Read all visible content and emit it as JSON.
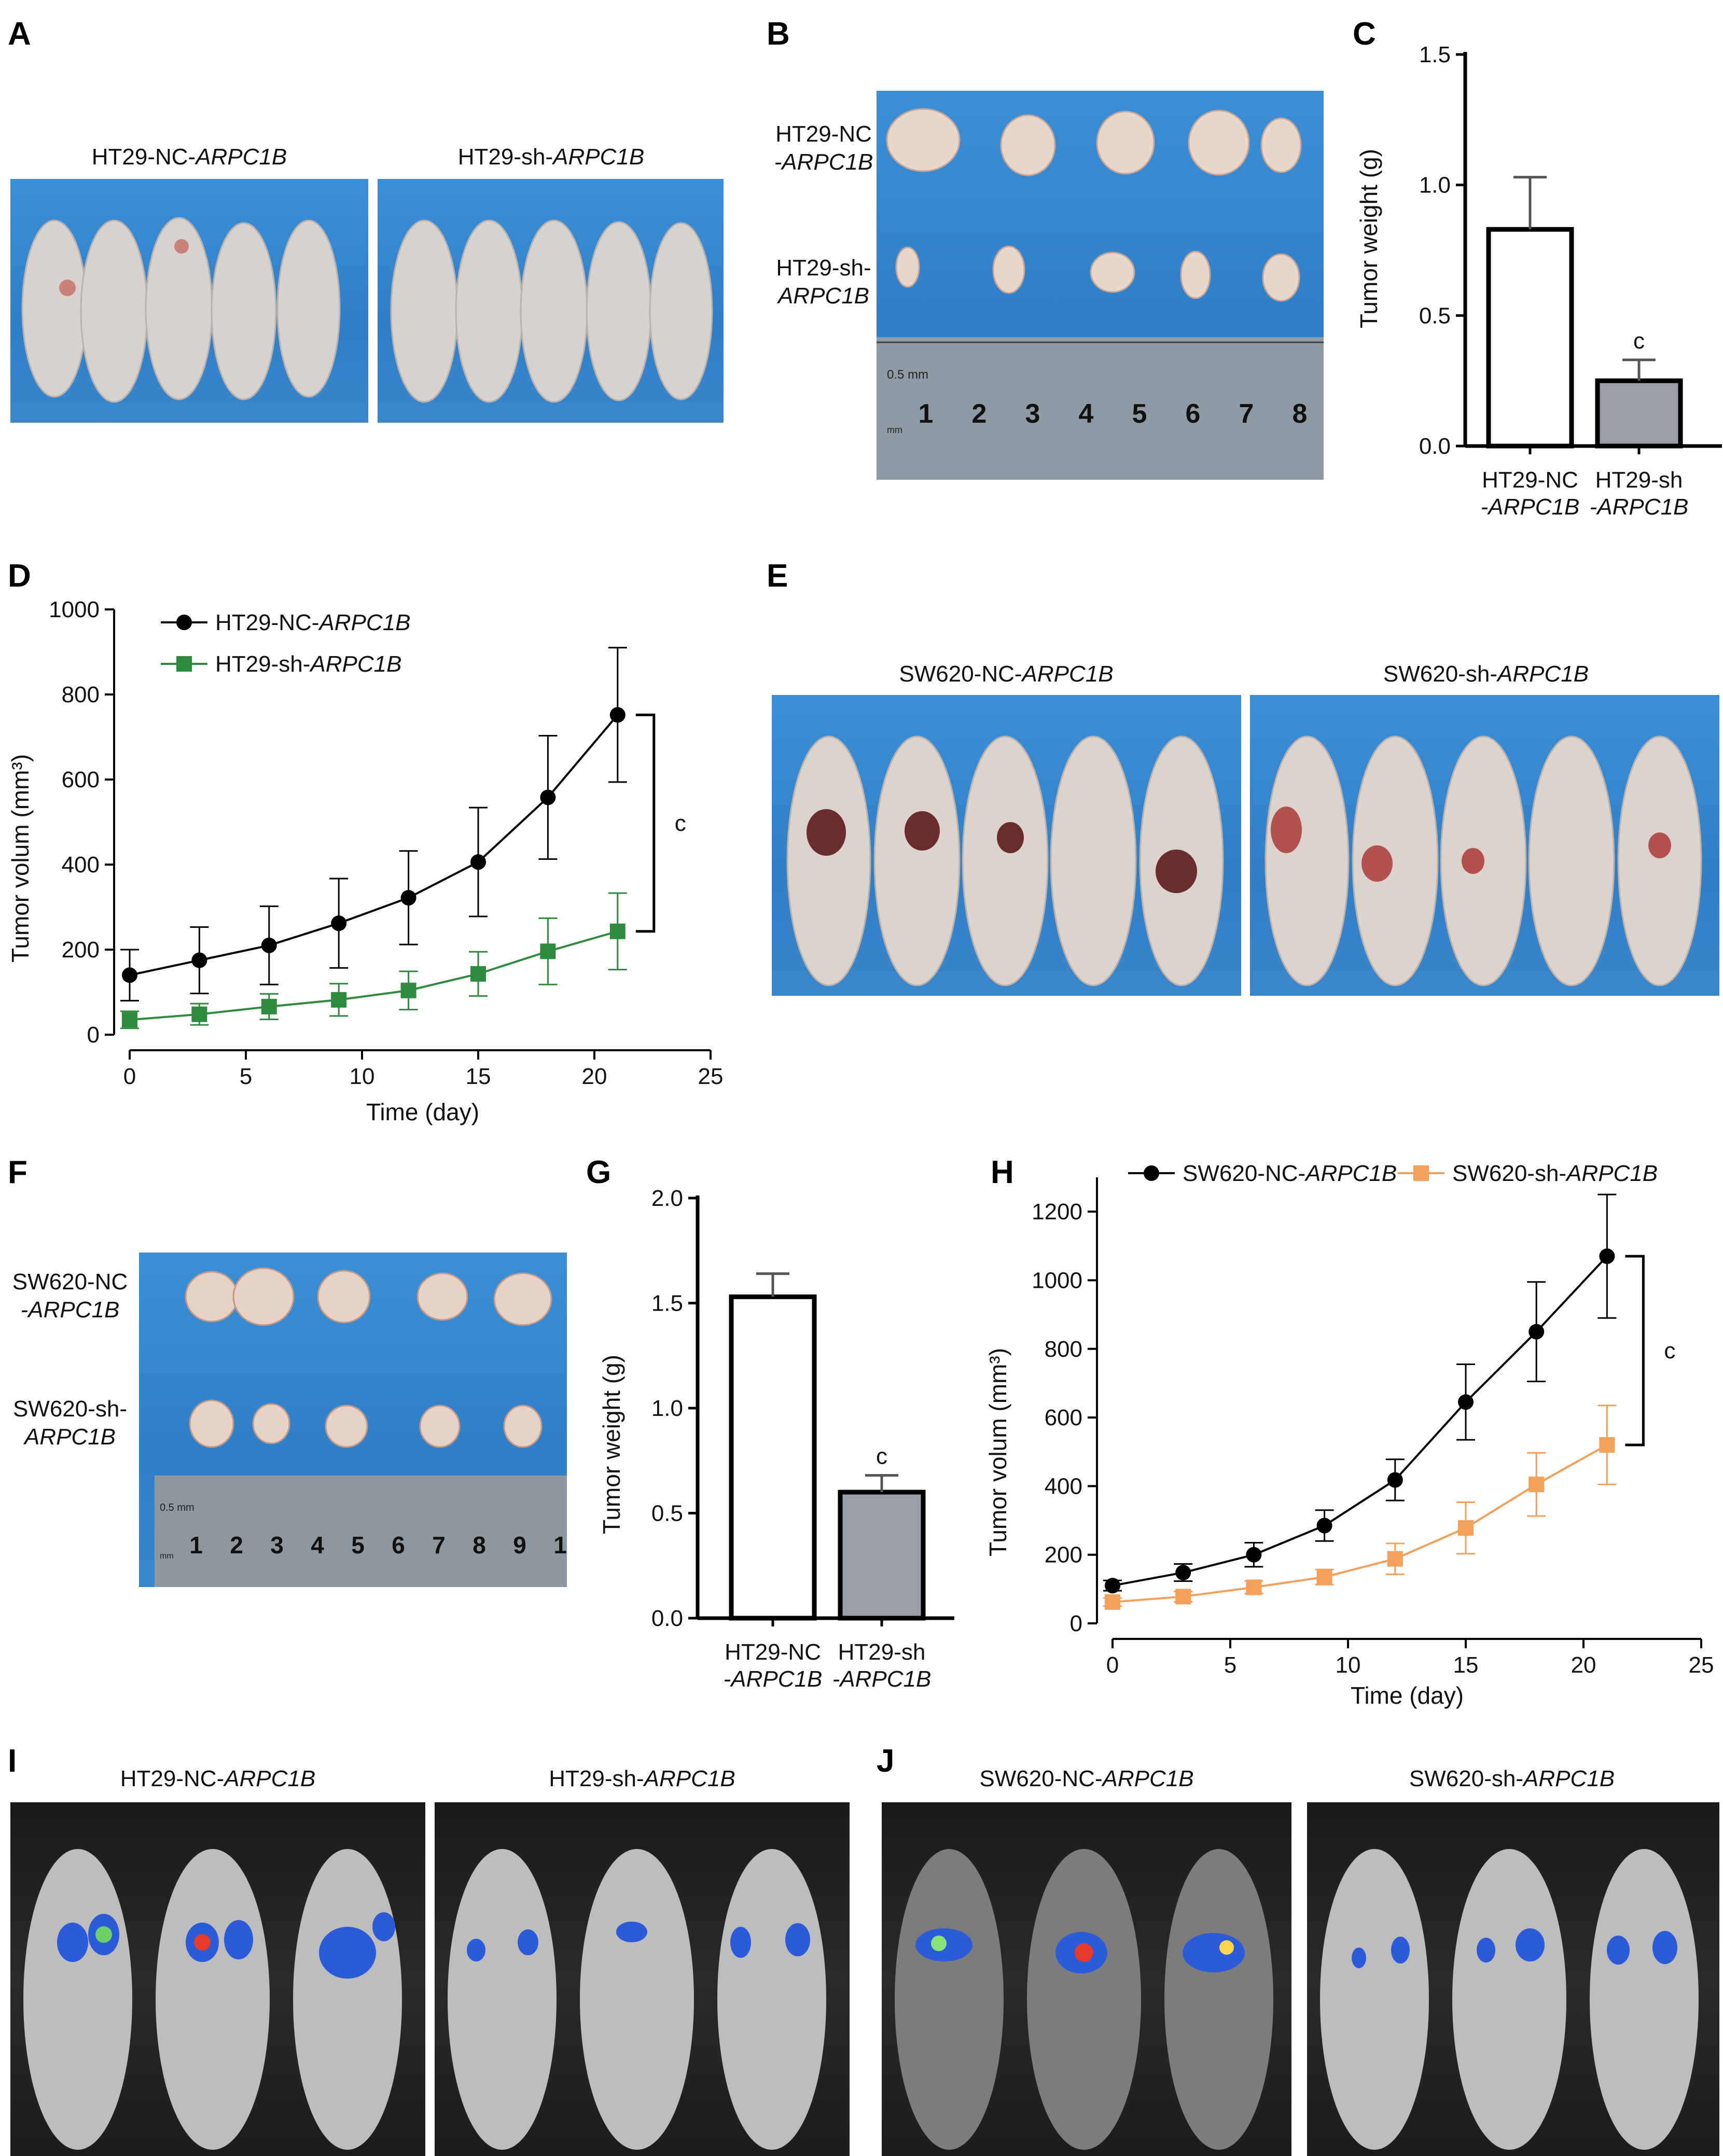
{
  "panels": {
    "A": {
      "letter": "A",
      "captions": [
        {
          "prefix": "HT29-NC-",
          "gene": "ARPC1B"
        },
        {
          "prefix": "HT29-sh-",
          "gene": "ARPC1B"
        }
      ]
    },
    "B": {
      "letter": "B",
      "rows": [
        {
          "line1": "HT29-NC",
          "line2": "-ARPC1B"
        },
        {
          "line1": "HT29-sh-",
          "line2": "ARPC1B"
        }
      ],
      "ruler": {
        "unit": "0.5 mm",
        "unit2": "mm",
        "numbers": [
          "1",
          "2",
          "3",
          "4",
          "5",
          "6",
          "7",
          "8"
        ]
      }
    },
    "E": {
      "letter": "E",
      "captions": [
        {
          "prefix": "SW620-NC-",
          "gene": "ARPC1B"
        },
        {
          "prefix": "SW620-sh-",
          "gene": "ARPC1B"
        }
      ]
    },
    "F": {
      "letter": "F",
      "rows": [
        {
          "line1": "SW620-NC",
          "line2": "-ARPC1B"
        },
        {
          "line1": "SW620-sh-",
          "line2": "ARPC1B"
        }
      ],
      "ruler": {
        "unit": "0.5 mm",
        "unit2": "mm",
        "numbers": [
          "1",
          "2",
          "3",
          "4",
          "5",
          "6",
          "7",
          "8",
          "9",
          "1"
        ]
      }
    },
    "I": {
      "letter": "I",
      "captions": [
        {
          "prefix": "HT29-NC-",
          "gene": "ARPC1B"
        },
        {
          "prefix": "HT29-sh-",
          "gene": "ARPC1B"
        }
      ]
    },
    "J": {
      "letter": "J",
      "captions": [
        {
          "prefix": "SW620-NC-",
          "gene": "ARPC1B"
        },
        {
          "prefix": "SW620-sh-",
          "gene": "ARPC1B"
        }
      ]
    }
  },
  "colors": {
    "black_series": "#000000",
    "green_series": "#2e8b3e",
    "orange_series": "#f5a05a",
    "bar_sh": "#9a9ea8"
  },
  "chart_data": [
    {
      "id": "C",
      "letter": "C",
      "type": "bar",
      "categories": [
        {
          "line1": "HT29-NC",
          "line2": "-ARPC1B"
        },
        {
          "line1": "HT29-sh",
          "line2": "-ARPC1B"
        }
      ],
      "values": [
        0.83,
        0.25
      ],
      "errors": [
        0.2,
        0.08
      ],
      "ylabel": "Tumor weight (g)",
      "ylim": [
        0,
        1.5
      ],
      "yticks": [
        "0.0",
        "0.5",
        "1.0",
        "1.5"
      ],
      "annotation": "c"
    },
    {
      "id": "D",
      "letter": "D",
      "type": "line",
      "x": [
        0,
        3,
        6,
        9,
        12,
        15,
        18,
        21
      ],
      "series": [
        {
          "name_prefix": "HT29-NC-",
          "name_gene": "ARPC1B",
          "values": [
            140,
            175,
            210,
            262,
            322,
            406,
            558,
            752
          ],
          "errors": [
            60,
            78,
            92,
            105,
            110,
            128,
            145,
            158
          ],
          "color": "#000000",
          "marker": "circle"
        },
        {
          "name_prefix": "HT29-sh-",
          "name_gene": "ARPC1B",
          "values": [
            35,
            48,
            66,
            82,
            104,
            143,
            196,
            243
          ],
          "errors": [
            20,
            25,
            30,
            38,
            45,
            52,
            78,
            90
          ],
          "color": "#2e8b3e",
          "marker": "square"
        }
      ],
      "xlabel": "Time (day)",
      "ylabel": "Tumor volum (mm³)",
      "xlim": [
        0,
        25
      ],
      "ylim": [
        0,
        1000
      ],
      "xticks": [
        "0",
        "5",
        "10",
        "15",
        "20",
        "25"
      ],
      "yticks": [
        "0",
        "200",
        "400",
        "600",
        "800",
        "1000"
      ],
      "annotation": "c",
      "legend": "top-left"
    },
    {
      "id": "G",
      "letter": "G",
      "type": "bar",
      "categories": [
        {
          "line1": "HT29-NC",
          "line2": "-ARPC1B"
        },
        {
          "line1": "HT29-sh",
          "line2": "-ARPC1B"
        }
      ],
      "values": [
        1.53,
        0.6
      ],
      "errors": [
        0.11,
        0.08
      ],
      "ylabel": "Tumor weight (g)",
      "ylim": [
        0,
        2.0
      ],
      "yticks": [
        "0.0",
        "0.5",
        "1.0",
        "1.5",
        "2.0"
      ],
      "annotation": "c"
    },
    {
      "id": "H",
      "letter": "H",
      "type": "line",
      "x": [
        0,
        3,
        6,
        9,
        12,
        15,
        18,
        21
      ],
      "series": [
        {
          "name_prefix": "SW620-NC-",
          "name_gene": "ARPC1B",
          "values": [
            110,
            148,
            200,
            285,
            418,
            645,
            850,
            1070
          ],
          "errors": [
            15,
            25,
            35,
            45,
            60,
            110,
            145,
            180
          ],
          "color": "#000000",
          "marker": "circle"
        },
        {
          "name_prefix": "SW620-sh-",
          "name_gene": "ARPC1B",
          "values": [
            62,
            78,
            105,
            135,
            188,
            278,
            405,
            520
          ],
          "errors": [
            12,
            15,
            18,
            22,
            45,
            75,
            92,
            115
          ],
          "color": "#f5a05a",
          "marker": "square"
        }
      ],
      "xlabel": "Time (day)",
      "ylabel": "Tumor volum (mm³)",
      "xlim": [
        0,
        25
      ],
      "ylim": [
        0,
        1300
      ],
      "xticks": [
        "0",
        "5",
        "10",
        "15",
        "20",
        "25"
      ],
      "yticks": [
        "0",
        "200",
        "400",
        "600",
        "800",
        "1000",
        "1200"
      ],
      "annotation": "c",
      "legend": "top"
    }
  ]
}
